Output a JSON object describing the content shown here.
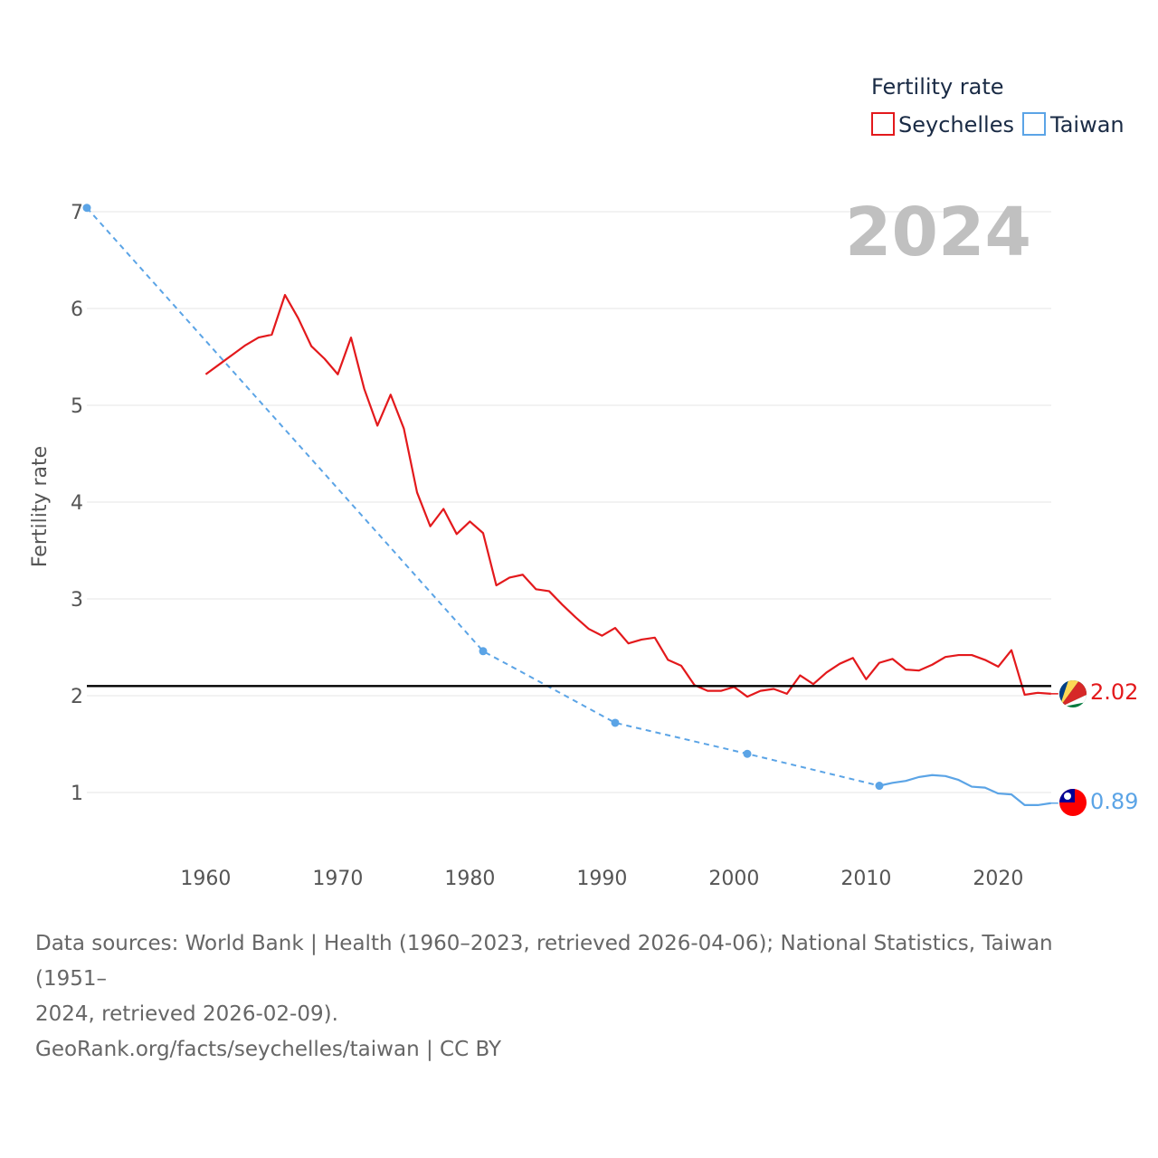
{
  "chart_data": {
    "type": "line",
    "title": "",
    "year_label": "2024",
    "ylabel": "Fertility rate",
    "xlabel": "",
    "xlim": [
      1951,
      2024
    ],
    "ylim": [
      0.45,
      7.2
    ],
    "x_ticks": [
      1960,
      1970,
      1980,
      1990,
      2000,
      2010,
      2020
    ],
    "y_ticks": [
      1,
      2,
      3,
      4,
      5,
      6,
      7
    ],
    "grid": true,
    "legend": {
      "title": "Fertility rate",
      "position": "top-right",
      "entries": [
        "Seychelles",
        "Taiwan"
      ]
    },
    "reference_line": {
      "value": 2.1,
      "color": "#000000"
    },
    "series": [
      {
        "name": "Seychelles",
        "color": "#e3191c",
        "style": "solid",
        "end_label": "2.02",
        "x": [
          1960,
          1961,
          1962,
          1963,
          1964,
          1965,
          1966,
          1967,
          1968,
          1969,
          1970,
          1971,
          1972,
          1973,
          1974,
          1975,
          1976,
          1977,
          1978,
          1979,
          1980,
          1981,
          1982,
          1983,
          1984,
          1985,
          1986,
          1987,
          1988,
          1989,
          1990,
          1991,
          1992,
          1993,
          1994,
          1995,
          1996,
          1997,
          1998,
          1999,
          2000,
          2001,
          2002,
          2003,
          2004,
          2005,
          2006,
          2007,
          2008,
          2009,
          2010,
          2011,
          2012,
          2013,
          2014,
          2015,
          2016,
          2017,
          2018,
          2019,
          2020,
          2021,
          2022,
          2023,
          2024
        ],
        "values": [
          5.32,
          5.42,
          5.52,
          5.62,
          5.7,
          5.73,
          6.14,
          5.9,
          5.61,
          5.48,
          5.32,
          5.7,
          5.17,
          4.79,
          5.11,
          4.76,
          4.1,
          3.75,
          3.93,
          3.67,
          3.8,
          3.68,
          3.14,
          3.22,
          3.25,
          3.1,
          3.08,
          2.94,
          2.81,
          2.69,
          2.62,
          2.7,
          2.54,
          2.58,
          2.6,
          2.37,
          2.31,
          2.11,
          2.05,
          2.05,
          2.09,
          1.99,
          2.05,
          2.07,
          2.02,
          2.21,
          2.12,
          2.24,
          2.33,
          2.39,
          2.17,
          2.34,
          2.38,
          2.27,
          2.26,
          2.32,
          2.4,
          2.42,
          2.42,
          2.37,
          2.3,
          2.47,
          2.01,
          2.03,
          2.02
        ]
      },
      {
        "name": "Taiwan",
        "color": "#5ba4e6",
        "style": "dashed",
        "end_label": "0.89",
        "sparse_x": [
          1951,
          1981,
          1991,
          2001,
          2011
        ],
        "sparse_values": [
          7.04,
          2.46,
          1.72,
          1.4,
          1.07
        ],
        "x": [
          2011,
          2012,
          2013,
          2014,
          2015,
          2016,
          2017,
          2018,
          2019,
          2020,
          2021,
          2022,
          2023,
          2024
        ],
        "values": [
          1.07,
          1.1,
          1.12,
          1.16,
          1.18,
          1.17,
          1.13,
          1.06,
          1.05,
          0.99,
          0.98,
          0.87,
          0.87,
          0.89
        ]
      }
    ]
  },
  "footer": {
    "source_line1": "Data sources: World Bank | Health (1960–2023, retrieved 2026-04-06); National Statistics, Taiwan (1951–",
    "source_line2": "2024, retrieved 2026-02-09).",
    "attribution": "GeoRank.org/facts/seychelles/taiwan | CC BY"
  }
}
